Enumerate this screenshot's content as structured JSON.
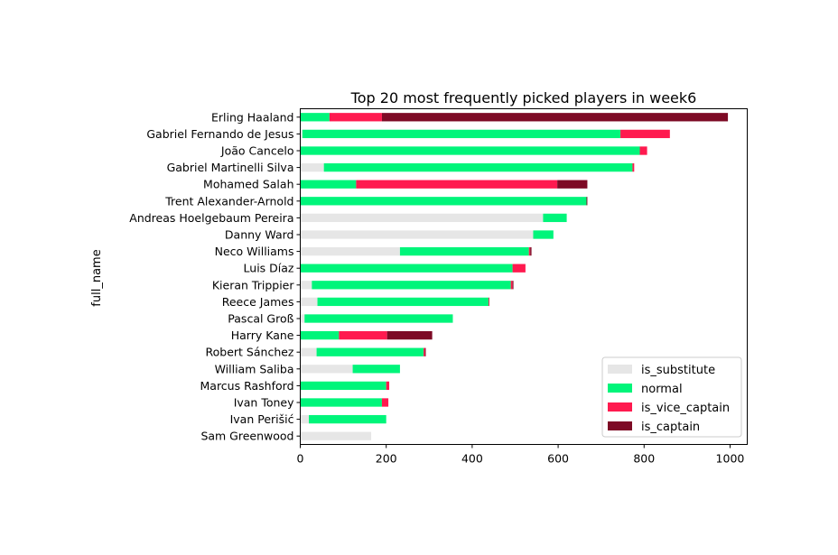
{
  "chart_data": {
    "type": "bar",
    "orientation": "horizontal",
    "stacked": true,
    "title": "Top 20 most frequently picked players in week6",
    "xlabel": "",
    "ylabel": "full_name",
    "xlim": [
      0,
      1040
    ],
    "xticks": [
      0,
      200,
      400,
      600,
      800,
      1000
    ],
    "legend_position": "bottom-right",
    "categories": [
      "Erling Haaland",
      "Gabriel Fernando de Jesus",
      "João Cancelo",
      "Gabriel Martinelli Silva",
      "Mohamed Salah",
      "Trent Alexander-Arnold",
      "Andreas Hoelgebaum Pereira",
      "Danny Ward",
      "Neco Williams",
      "Luis Díaz",
      "Kieran Trippier",
      "Reece James",
      "Pascal Groß",
      "Harry Kane",
      "Robert Sánchez",
      "William Saliba",
      "Marcus Rashford",
      "Ivan Toney",
      "Ivan Perišić",
      "Sam Greenwood"
    ],
    "series": [
      {
        "name": "is_substitute",
        "color": "#e6e6e6",
        "values": [
          0,
          5,
          0,
          55,
          0,
          0,
          565,
          542,
          232,
          0,
          27,
          40,
          10,
          0,
          38,
          122,
          0,
          0,
          20,
          165
        ]
      },
      {
        "name": "normal",
        "color": "#00f57a",
        "values": [
          68,
          740,
          790,
          718,
          130,
          666,
          55,
          47,
          300,
          494,
          463,
          398,
          345,
          90,
          249,
          110,
          200,
          190,
          180,
          0
        ]
      },
      {
        "name": "is_vice_captain",
        "color": "#ff1a4f",
        "values": [
          122,
          115,
          17,
          4,
          468,
          0,
          0,
          0,
          3,
          30,
          4,
          2,
          0,
          112,
          3,
          0,
          7,
          15,
          0,
          0
        ]
      },
      {
        "name": "is_captain",
        "color": "#7d0a25",
        "values": [
          805,
          0,
          0,
          0,
          70,
          2,
          0,
          0,
          3,
          0,
          2,
          0,
          0,
          105,
          2,
          0,
          0,
          0,
          0,
          0
        ]
      }
    ]
  }
}
